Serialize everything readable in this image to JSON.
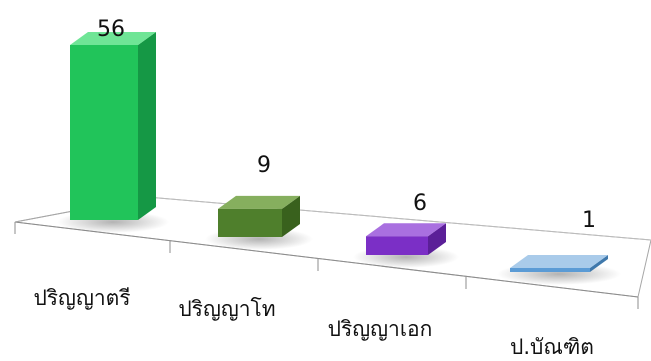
{
  "chart_data": {
    "type": "bar",
    "categories": [
      "ปริญญาตรี",
      "ปริญญาโท",
      "ปริญญาเอก",
      "ป.บัณฑิต"
    ],
    "values": [
      56,
      9,
      6,
      1
    ],
    "title": "",
    "xlabel": "",
    "ylabel": "",
    "ylim": [
      0,
      56
    ],
    "grid": false,
    "legend": "none",
    "colors": [
      {
        "front": "#21c45a",
        "side": "#159845",
        "top": "#6fe596"
      },
      {
        "front": "#4f7f2c",
        "side": "#39611d",
        "top": "#86af5e"
      },
      {
        "front": "#7b2fc6",
        "side": "#5b1f98",
        "top": "#a970e0"
      },
      {
        "front": "#5b9bd5",
        "side": "#3f78ab",
        "top": "#a9cbea"
      }
    ]
  }
}
